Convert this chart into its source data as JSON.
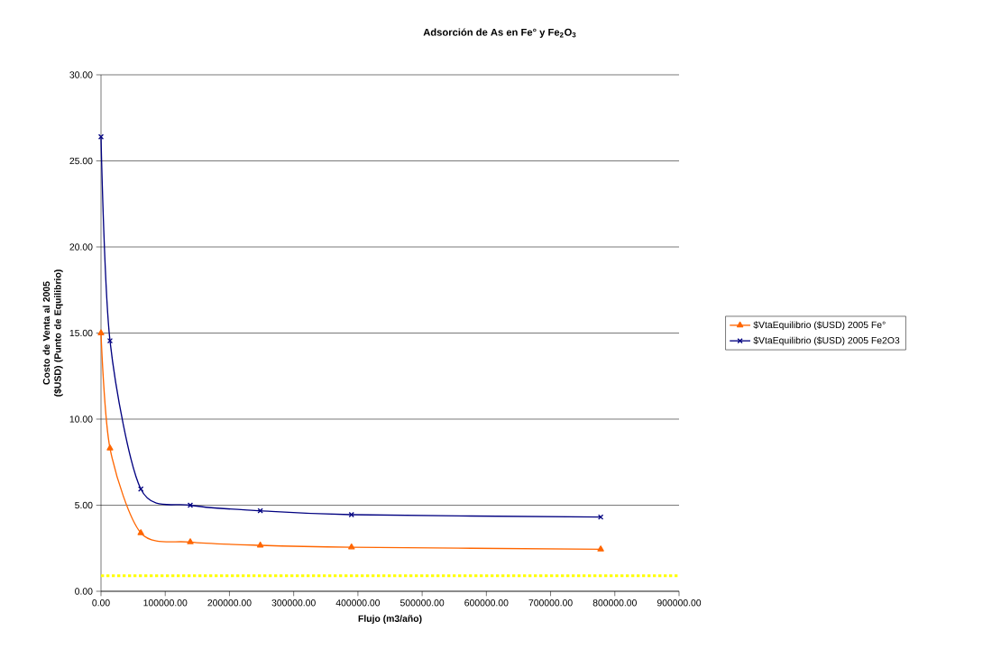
{
  "chart_data": {
    "type": "line",
    "title": "Adsorción de As en Fe° y Fe$_{2}$O$_{3}$",
    "xlabel": "Flujo (m3/año)",
    "ylabel": "Costo de Venta al 2005 ($USD) (Punto de Equilibrio)",
    "x": [
      0,
      14000,
      62000,
      139000,
      248000,
      390000,
      778000
    ],
    "series": [
      {
        "name": "$VtaEquilibrio ($USD) 2005 Fe°",
        "color": "#ff6600",
        "marker": "triangle",
        "values": [
          15.0,
          8.31,
          3.39,
          2.86,
          2.67,
          2.56,
          2.44
        ]
      },
      {
        "name": "$VtaEquilibrio ($USD) 2005 Fe2O3",
        "color": "#000080",
        "marker": "cross",
        "values": [
          26.4,
          14.55,
          5.94,
          5.0,
          4.68,
          4.45,
          4.31
        ]
      }
    ],
    "xlim": [
      0,
      900000
    ],
    "xticks": [
      {
        "value": 0,
        "label": "0.00"
      },
      {
        "value": 100000,
        "label": "100000.00"
      },
      {
        "value": 200000,
        "label": "200000.00"
      },
      {
        "value": 300000,
        "label": "300000.00"
      },
      {
        "value": 400000,
        "label": "400000.00"
      },
      {
        "value": 500000,
        "label": "500000.00"
      },
      {
        "value": 600000,
        "label": "600000.00"
      },
      {
        "value": 700000,
        "label": "700000.00"
      },
      {
        "value": 800000,
        "label": "800000.00"
      },
      {
        "value": 900000,
        "label": "900000.00"
      }
    ],
    "ylim": [
      0,
      30
    ],
    "yticks": [
      {
        "value": 0,
        "label": "0.00"
      },
      {
        "value": 5,
        "label": "5.00"
      },
      {
        "value": 10,
        "label": "10.00"
      },
      {
        "value": 15,
        "label": "15.00"
      },
      {
        "value": 20,
        "label": "20.00"
      },
      {
        "value": 25,
        "label": "25.00"
      },
      {
        "value": 30,
        "label": "30.00"
      }
    ],
    "grid": "y",
    "legend": "right",
    "line_style": "solid",
    "ref_lines": [
      {
        "axis": "y",
        "value": 0.9,
        "color": "#ffff00",
        "line_style": "dotted"
      }
    ]
  }
}
